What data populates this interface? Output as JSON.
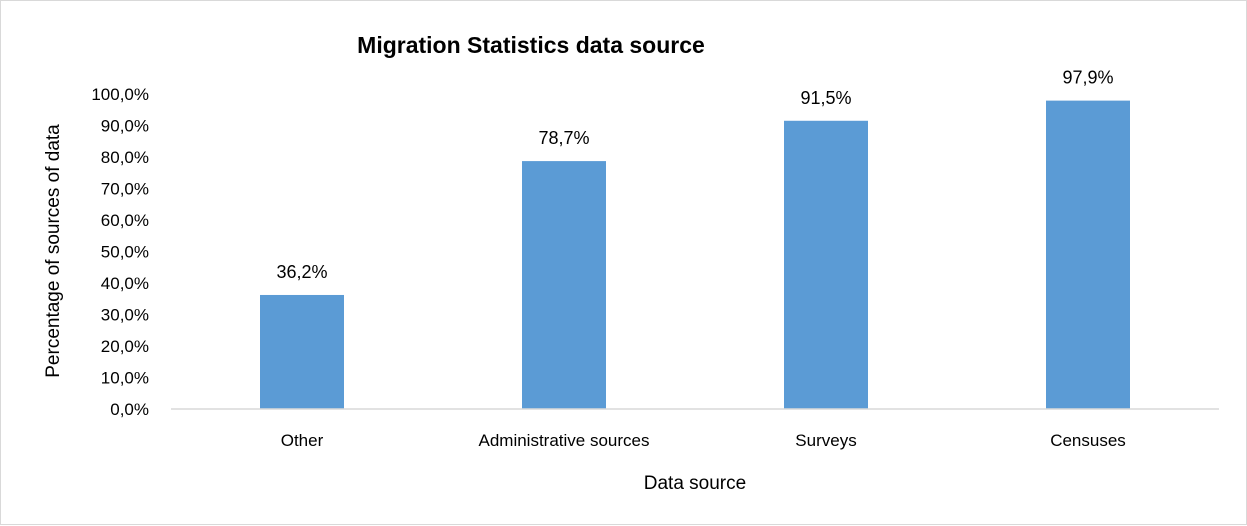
{
  "chart_data": {
    "type": "bar",
    "title": "Migration Statistics data source",
    "xlabel": "Data source",
    "ylabel": "Percentage of sources of data",
    "categories": [
      "Other",
      "Administrative sources",
      "Surveys",
      "Censuses"
    ],
    "values": [
      36.2,
      78.7,
      91.5,
      97.9
    ],
    "data_labels": [
      "36,2%",
      "78,7%",
      "91,5%",
      "97,9%"
    ],
    "ylim": [
      0,
      100
    ],
    "y_ticks": [
      "0,0%",
      "10,0%",
      "20,0%",
      "30,0%",
      "40,0%",
      "50,0%",
      "60,0%",
      "70,0%",
      "80,0%",
      "90,0%",
      "100,0%"
    ],
    "grid": false,
    "legend": "none",
    "bar_color": "#5b9bd5"
  }
}
